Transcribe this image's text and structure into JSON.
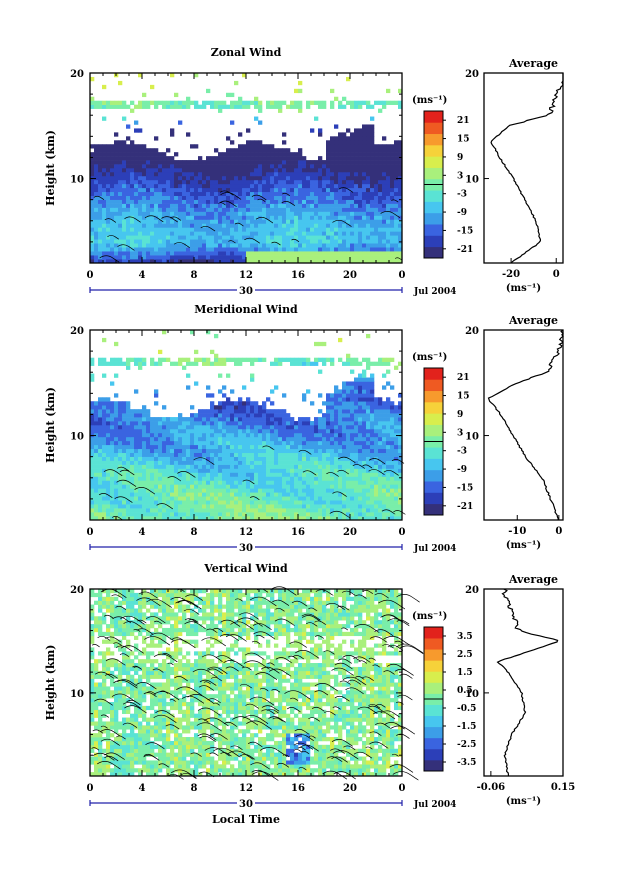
{
  "figure": {
    "x_tick_labels": [
      "0",
      "4",
      "8",
      "12",
      "16",
      "20",
      "0"
    ],
    "day_label": "30",
    "date_label": "Jul 2004",
    "bottom_xlabel": "Local Time",
    "ylabel": "Height (km)",
    "y_tick_labels": [
      "10",
      "20"
    ],
    "unit_label": "(ms⁻¹)",
    "avg_title": "Average",
    "avg_unit": "(ms⁻¹)"
  },
  "chart_data": [
    {
      "type": "heatmap",
      "title": "Zonal Wind",
      "xlabel": "",
      "ylabel": "Height (km)",
      "xlim": [
        0,
        24
      ],
      "ylim": [
        2,
        20
      ],
      "colorbar_labels": [
        "21",
        "15",
        "9",
        "3",
        "-3",
        "-9",
        "-15",
        "-21"
      ],
      "colorbar_range": [
        -24,
        24
      ],
      "profile_summary": [
        {
          "height_km": 2,
          "value": -20
        },
        {
          "height_km": 4,
          "value": -7
        },
        {
          "height_km": 6,
          "value": -9
        },
        {
          "height_km": 8,
          "value": -14
        },
        {
          "height_km": 10,
          "value": -19
        },
        {
          "height_km": 12,
          "value": -25
        },
        {
          "height_km": 13.5,
          "value": -29
        },
        {
          "height_km": 15,
          "value": -21
        },
        {
          "height_km": 16,
          "value": -3
        },
        {
          "height_km": 18,
          "value": 0
        },
        {
          "height_km": 19.5,
          "value": 4
        }
      ]
    },
    {
      "type": "heatmap",
      "title": "Meridional Wind",
      "xlabel": "",
      "ylabel": "Height (km)",
      "xlim": [
        0,
        24
      ],
      "ylim": [
        2,
        20
      ],
      "colorbar_labels": [
        "21",
        "15",
        "9",
        "3",
        "-3",
        "-9",
        "-15",
        "-21"
      ],
      "colorbar_range": [
        -24,
        24
      ],
      "profile_summary": [
        {
          "height_km": 2,
          "value": 0
        },
        {
          "height_km": 4,
          "value": -2
        },
        {
          "height_km": 6,
          "value": -4
        },
        {
          "height_km": 8,
          "value": -8
        },
        {
          "height_km": 10,
          "value": -11
        },
        {
          "height_km": 12,
          "value": -14
        },
        {
          "height_km": 13.5,
          "value": -17
        },
        {
          "height_km": 15,
          "value": -10
        },
        {
          "height_km": 16,
          "value": -3
        },
        {
          "height_km": 18,
          "value": 0
        },
        {
          "height_km": 19.5,
          "value": 1
        }
      ]
    },
    {
      "type": "heatmap",
      "title": "Vertical Wind",
      "xlabel": "Local Time",
      "ylabel": "Height (km)",
      "xlim": [
        0,
        24
      ],
      "ylim": [
        2,
        20
      ],
      "colorbar_labels": [
        "3.5",
        "2.5",
        "1.5",
        "0.5",
        "-0.5",
        "-1.5",
        "-2.5",
        "-3.5"
      ],
      "colorbar_range": [
        -4,
        4
      ],
      "profile_summary": [
        {
          "height_km": 2,
          "value": -0.01
        },
        {
          "height_km": 4,
          "value": -0.02
        },
        {
          "height_km": 6,
          "value": 0.0
        },
        {
          "height_km": 8,
          "value": 0.04
        },
        {
          "height_km": 10,
          "value": 0.03
        },
        {
          "height_km": 12,
          "value": -0.01
        },
        {
          "height_km": 13,
          "value": -0.04
        },
        {
          "height_km": 14,
          "value": 0.05
        },
        {
          "height_km": 15,
          "value": 0.14
        },
        {
          "height_km": 16,
          "value": 0.02
        },
        {
          "height_km": 18,
          "value": 0.0
        },
        {
          "height_km": 19.5,
          "value": -0.02
        }
      ]
    }
  ],
  "average_panels": [
    {
      "xlim": [
        -32,
        3
      ],
      "ylim": [
        2,
        20
      ],
      "x_ticks": [
        -20,
        0
      ],
      "x_tick_labels": [
        "-20",
        "0"
      ]
    },
    {
      "xlim": [
        -18,
        1
      ],
      "ylim": [
        2,
        20
      ],
      "x_ticks": [
        -10,
        0
      ],
      "x_tick_labels": [
        "-10",
        "0"
      ]
    },
    {
      "xlim": [
        -0.08,
        0.15
      ],
      "ylim": [
        2,
        20
      ],
      "x_ticks": [
        -0.06,
        0.15
      ],
      "x_tick_labels": [
        "-0.06",
        "0.15"
      ]
    }
  ],
  "colors": {
    "scale": [
      "#34307a",
      "#2c3fb8",
      "#3a64e0",
      "#3c9ee8",
      "#47c6ef",
      "#5ae3d4",
      "#79eea9",
      "#a9f07c",
      "#d8ee4d",
      "#f6d23a",
      "#f79a2d",
      "#ef5a22",
      "#e2221c"
    ]
  }
}
